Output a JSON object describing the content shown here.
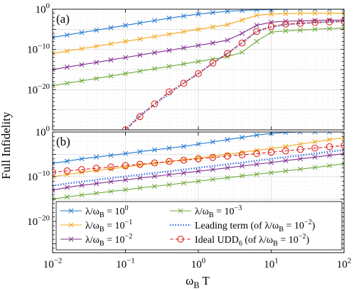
{
  "colors": {
    "blue": "#1f77d0",
    "yellow": "#f0a81c",
    "purple": "#7e2f8e",
    "green": "#6fa83a",
    "dotted": "#3f6fe0",
    "red": "#e3221a",
    "grid": "#dcdcdc"
  },
  "chart_data": [
    {
      "type": "line",
      "panel_label": "(a)",
      "xscale": "log",
      "yscale": "log",
      "xlim": [
        0.01,
        100
      ],
      "ylim": [
        1e-30,
        1
      ],
      "yticks": [
        "10^0",
        "10^-10",
        "10^-20"
      ],
      "grid": true,
      "series": [
        {
          "name_key": "l0",
          "color": "blue",
          "marker": "x",
          "x": [
            0.01,
            0.0158,
            0.0251,
            0.0398,
            0.0631,
            0.1,
            0.158,
            0.251,
            0.398,
            0.631,
            1,
            1.58,
            2.51,
            3.98,
            6.31,
            10,
            15.8,
            25.1,
            39.8,
            63.1,
            100
          ],
          "y": [
            1e-07,
            4e-07,
            1.6e-06,
            6e-06,
            2.5e-05,
            0.0001,
            0.0004,
            0.0015,
            0.006,
            0.02,
            0.06,
            0.15,
            0.3,
            0.5,
            0.7,
            0.85,
            0.95,
            1,
            1,
            1,
            1
          ]
        },
        {
          "name_key": "l1",
          "color": "yellow",
          "marker": "x",
          "x": [
            0.01,
            0.0158,
            0.0251,
            0.0398,
            0.0631,
            0.1,
            0.158,
            0.251,
            0.398,
            0.631,
            1,
            1.58,
            2.51,
            3.98,
            6.31,
            10,
            15.8,
            25.1,
            39.8,
            63.1,
            100
          ],
          "y": [
            1e-11,
            4e-11,
            1.6e-10,
            6e-10,
            2.5e-09,
            1e-08,
            4e-08,
            1.6e-07,
            6e-07,
            2.5e-06,
            1e-05,
            4e-05,
            0.00015,
            0.002,
            0.03,
            0.06,
            0.08,
            0.1,
            0.1,
            0.1,
            0.1
          ]
        },
        {
          "name_key": "l2",
          "color": "purple",
          "marker": "x",
          "x": [
            0.01,
            0.0158,
            0.0251,
            0.0398,
            0.0631,
            0.1,
            0.158,
            0.251,
            0.398,
            0.631,
            1,
            1.58,
            2.51,
            3.98,
            6.31,
            10,
            15.8,
            25.1,
            39.8,
            63.1,
            100
          ],
          "y": [
            1e-15,
            4e-15,
            1.6e-14,
            6e-14,
            2.5e-13,
            1e-12,
            4e-12,
            1.6e-11,
            6e-11,
            2.5e-10,
            1e-09,
            4e-09,
            2e-08,
            1e-06,
            0.0001,
            0.0006,
            0.001,
            0.0013,
            0.0016,
            0.002,
            0.002
          ]
        },
        {
          "name_key": "l3",
          "color": "green",
          "marker": "x",
          "x": [
            0.01,
            0.0158,
            0.0251,
            0.0398,
            0.0631,
            0.1,
            0.158,
            0.251,
            0.398,
            0.631,
            1,
            1.58,
            2.51,
            3.98,
            6.31,
            10,
            15.8,
            25.1,
            39.8,
            63.1,
            100
          ],
          "y": [
            1e-19,
            4e-19,
            1.6e-18,
            6e-18,
            2.5e-17,
            1e-16,
            4e-16,
            1.6e-15,
            6e-15,
            2.5e-14,
            1e-13,
            4e-13,
            1.6e-12,
            2e-11,
            1e-08,
            2e-06,
            4e-06,
            6e-06,
            1e-05,
            1.5e-05,
            2e-05
          ]
        },
        {
          "name_key": "lead",
          "color": "dotted",
          "marker": "none",
          "dotted": true,
          "x": [
            0.1,
            0.158,
            0.251,
            0.398,
            0.631,
            1,
            1.58,
            2.51,
            3.98,
            6.31,
            10,
            15.8,
            25.1,
            39.8,
            63.1,
            100
          ],
          "y": [
            1e-30,
            5e-27,
            2e-24,
            1e-21,
            5e-19,
            1e-16,
            4e-14,
            1e-11,
            5e-09,
            3e-06,
            4e-05,
            0.00015,
            0.0003,
            0.0005,
            0.0007,
            0.001
          ]
        },
        {
          "name_key": "udd",
          "color": "red",
          "marker": "o",
          "dashed": true,
          "x": [
            0.1,
            0.158,
            0.251,
            0.398,
            0.631,
            1,
            1.58,
            2.51,
            3.98,
            6.31,
            10,
            15.8,
            25.1,
            39.8,
            63.1,
            100
          ],
          "y": [
            1e-30,
            2e-27,
            3e-24,
            3e-21,
            4e-19,
            1e-16,
            4e-14,
            1e-11,
            4e-09,
            3e-06,
            5e-05,
            0.0002,
            0.0003,
            0.0005,
            0.0007,
            0.001
          ]
        }
      ]
    },
    {
      "type": "line",
      "panel_label": "(b)",
      "xscale": "log",
      "yscale": "log",
      "xlim": [
        0.01,
        100
      ],
      "ylim": [
        1e-27,
        1
      ],
      "yticks": [
        "10^0",
        "10^-10",
        "10^-20"
      ],
      "xticks": [
        "10^-2",
        "10^-1",
        "10^0",
        "10^1",
        "10^2"
      ],
      "grid": true,
      "series": [
        {
          "name_key": "l0",
          "color": "blue",
          "marker": "x",
          "x": [
            0.01,
            0.0158,
            0.0251,
            0.0398,
            0.0631,
            0.1,
            0.158,
            0.251,
            0.398,
            0.631,
            1,
            1.58,
            2.51,
            3.98,
            6.31,
            10,
            15.8,
            25.1,
            39.8,
            63.1,
            100
          ],
          "y": [
            1e-07,
            3e-07,
            1e-06,
            2.5e-06,
            6e-06,
            1.5e-05,
            4e-05,
            0.0001,
            0.00025,
            0.0006,
            0.002,
            0.006,
            0.02,
            0.06,
            0.2,
            0.5,
            0.8,
            1,
            1,
            1,
            1
          ]
        },
        {
          "name_key": "l1",
          "color": "yellow",
          "marker": "x",
          "x": [
            0.01,
            0.0158,
            0.0251,
            0.0398,
            0.0631,
            0.1,
            0.158,
            0.251,
            0.398,
            0.631,
            1,
            1.58,
            2.51,
            3.98,
            6.31,
            10,
            15.8,
            25.1,
            39.8,
            63.1,
            100
          ],
          "y": [
            1e-10,
            3e-10,
            1e-09,
            2.5e-09,
            6e-09,
            1.5e-08,
            4e-08,
            1e-07,
            2.5e-07,
            6e-07,
            1.5e-06,
            4e-06,
            1e-05,
            3e-05,
            8e-05,
            0.0002,
            0.0006,
            0.002,
            0.006,
            0.02,
            0.05
          ]
        },
        {
          "name_key": "l2",
          "color": "purple",
          "marker": "x",
          "x": [
            0.01,
            0.0158,
            0.0251,
            0.0398,
            0.0631,
            0.1,
            0.158,
            0.251,
            0.398,
            0.631,
            1,
            1.58,
            2.51,
            3.98,
            6.31,
            10,
            15.8,
            25.1,
            39.8,
            63.1,
            100
          ],
          "y": [
            1e-13,
            4e-13,
            1.2e-12,
            3e-12,
            8e-12,
            2e-11,
            5e-11,
            1.2e-10,
            3e-10,
            7e-10,
            1.7e-09,
            4e-09,
            1e-08,
            2.5e-08,
            6e-08,
            1.5e-07,
            4e-07,
            1e-06,
            2.5e-06,
            6e-06,
            1.5e-05
          ]
        },
        {
          "name_key": "l3",
          "color": "green",
          "marker": "x",
          "x": [
            0.01,
            0.0158,
            0.0251,
            0.0398,
            0.0631,
            0.1,
            0.158,
            0.251,
            0.398,
            0.631,
            1,
            1.58,
            2.51,
            3.98,
            6.31,
            10,
            15.8,
            25.1,
            39.8,
            63.1,
            100
          ],
          "y": [
            1e-15,
            3e-15,
            8e-15,
            2e-14,
            5e-14,
            1.2e-13,
            3e-13,
            7e-13,
            1.6e-12,
            4e-12,
            1e-11,
            2.5e-11,
            6e-11,
            1.5e-10,
            3.5e-10,
            8e-10,
            2e-09,
            5e-09,
            1.2e-08,
            3e-08,
            8e-08
          ]
        },
        {
          "name_key": "lead",
          "color": "dotted",
          "marker": "none",
          "dotted": true,
          "x": [
            0.01,
            0.0158,
            0.0251,
            0.0398,
            0.0631,
            0.1,
            0.158,
            0.251,
            0.398,
            0.631,
            1,
            1.58,
            2.51,
            3.98,
            6.31,
            10,
            15.8,
            25.1,
            39.8,
            63.1,
            100
          ],
          "y": [
            1e-12,
            3e-12,
            8e-12,
            2e-11,
            5e-11,
            1.2e-10,
            3e-10,
            7e-10,
            1.7e-09,
            4e-09,
            1e-08,
            2.5e-08,
            6e-08,
            1.5e-07,
            4e-07,
            1e-06,
            2.5e-06,
            6e-06,
            1.5e-05,
            4e-05,
            0.0001
          ]
        },
        {
          "name_key": "udd",
          "color": "red",
          "marker": "o",
          "dashed": true,
          "x": [
            0.01,
            0.0158,
            0.0251,
            0.0398,
            0.0631,
            0.1,
            0.158,
            0.251,
            0.398,
            0.631,
            1,
            1.58,
            2.51,
            3.98,
            6.31,
            10,
            15.8,
            25.1,
            39.8,
            63.1,
            100
          ],
          "y": [
            1e-09,
            2e-09,
            4e-09,
            8e-09,
            1.5e-08,
            3e-08,
            6e-08,
            1.2e-07,
            2.5e-07,
            5e-07,
            1e-06,
            2e-06,
            4e-06,
            8e-06,
            1.5e-05,
            3e-05,
            6e-05,
            0.00012,
            0.00025,
            0.0005,
            0.001
          ]
        }
      ]
    }
  ],
  "figure": {
    "ylabel": "Full Infidelity",
    "xlabel": "ω_B T"
  },
  "legend": {
    "l0": "λ/ω_B = 10^0",
    "l1": "λ/ω_B = 10^-1",
    "l2": "λ/ω_B = 10^-2",
    "l3": "λ/ω_B = 10^-3",
    "lead": "Leading term (of λ/ω_B = 10^-2)",
    "udd": "Ideal UDD_6 (of λ/ω_B = 10^-2)"
  }
}
